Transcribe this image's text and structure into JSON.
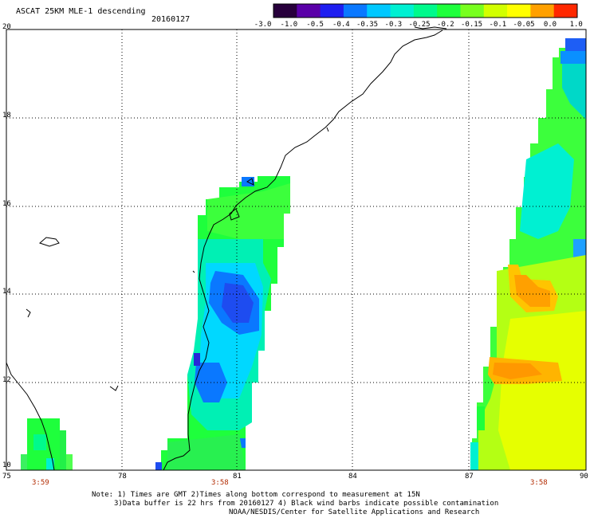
{
  "header": {
    "title": "ASCAT 25KM MLE-1 descending",
    "date": "20160127"
  },
  "colorbar": {
    "labels": [
      "-3.0",
      "-1.0",
      "-0.5",
      "-0.4",
      "-0.35",
      "-0.3",
      "-0.25",
      "-0.2",
      "-0.15",
      "-0.1",
      "-0.05",
      "0.0",
      "1.0"
    ],
    "colors": [
      "#28003c",
      "#5a00a8",
      "#1e1ef0",
      "#0a78ff",
      "#00c8ff",
      "#00f0d2",
      "#00fa8c",
      "#1eff3c",
      "#78ff1e",
      "#d2ff00",
      "#ffff00",
      "#ffa000",
      "#ff2800"
    ]
  },
  "axes": {
    "x_labels": [
      "75",
      "78",
      "81",
      "84",
      "87",
      "90"
    ],
    "y_labels": [
      "20",
      "18",
      "16",
      "14",
      "12",
      "10"
    ]
  },
  "times": [
    "3:59",
    "3:58",
    "3:58"
  ],
  "notes": {
    "line1": "Note: 1) Times are GMT 2)Times along bottom correspond to measurement at 15N",
    "line2": "3)Data buffer is 22 hrs from 20160127 4) Black wind barbs indicate possible contamination",
    "line3": "NOAA/NESDIS/Center for Satellite Applications and Research"
  }
}
